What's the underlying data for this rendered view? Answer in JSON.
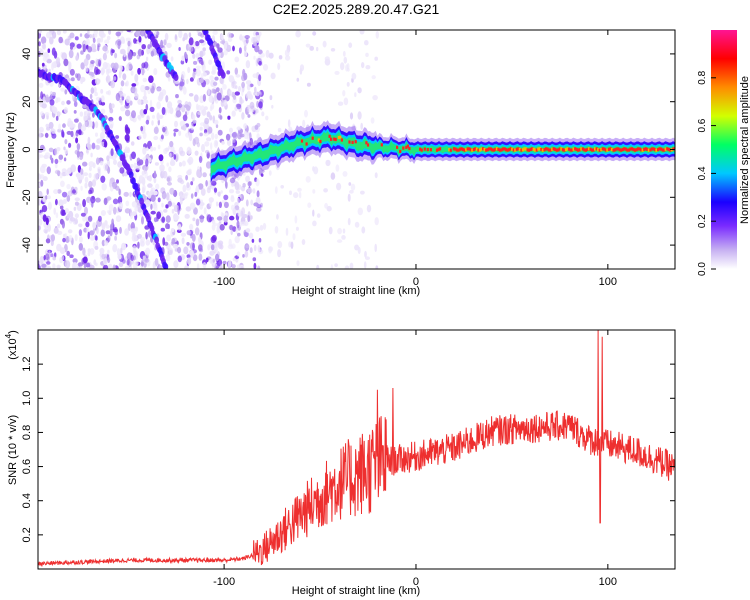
{
  "title": "C2E2.2025.289.20.47.G21",
  "chart_data": [
    {
      "type": "heatmap",
      "name": "spectrogram",
      "xlabel": "Height of straight line (km)",
      "ylabel": "Frequency (Hz)",
      "xlim": [
        -197,
        135
      ],
      "ylim": [
        -50,
        50
      ],
      "xticks": [
        -100,
        0,
        100
      ],
      "yticks": [
        40,
        20,
        0,
        -20,
        -40
      ],
      "colorbar": {
        "label": "Normalized spectral amplitude",
        "range": [
          0,
          1
        ],
        "ticks": [
          "0.0",
          "0.2",
          "0.4",
          "0.6",
          "0.8"
        ],
        "tick_values": [
          0,
          0.2,
          0.4,
          0.6,
          0.8
        ],
        "stops": [
          "#ffffff",
          "#c6b0f2",
          "#7a2bff",
          "#1a00ff",
          "#00c8ff",
          "#00ff64",
          "#d2ff00",
          "#ff8c00",
          "#ff0000",
          "#ff1493"
        ]
      },
      "features": [
        {
          "name": "carrier-track",
          "points": [
            [
              -107,
              -8
            ],
            [
              -95,
              -5
            ],
            [
              -80,
              -2
            ],
            [
              -60,
              3
            ],
            [
              -45,
              5
            ],
            [
              -30,
              2
            ],
            [
              -20,
              1
            ],
            [
              0,
              0
            ],
            [
              50,
              0
            ],
            [
              100,
              0
            ],
            [
              135,
              0
            ]
          ]
        },
        {
          "name": "chirp-track-left",
          "points": [
            [
              -197,
              32
            ],
            [
              -185,
              29
            ],
            [
              -165,
              15
            ],
            [
              -150,
              -8
            ],
            [
              -140,
              -28
            ],
            [
              -130,
              -50
            ]
          ]
        },
        {
          "name": "chirp-track-upper",
          "points": [
            [
              -140,
              50
            ],
            [
              -133,
              40
            ],
            [
              -125,
              30
            ]
          ]
        },
        {
          "name": "chirp-track-right",
          "points": [
            [
              -110,
              50
            ],
            [
              -105,
              40
            ],
            [
              -100,
              30
            ]
          ]
        }
      ]
    },
    {
      "type": "line",
      "name": "snr",
      "xlabel": "Height of straight line (km)",
      "ylabel": "SNR (10 * v/v)",
      "yscale_label": "(x10",
      "yscale_exp": "4",
      "xlim": [
        -197,
        135
      ],
      "ylim": [
        0,
        1.4
      ],
      "xticks": [
        -100,
        0,
        100
      ],
      "yticks": [
        0.2,
        0.4,
        0.6,
        0.8,
        1.0,
        1.2
      ],
      "ytick_labels": [
        "0.2",
        "0.4",
        "0.6",
        "0.8",
        "1.0",
        "1.2"
      ],
      "color": "#ee2f2f",
      "envelope": [
        [
          -197,
          0.03
        ],
        [
          -150,
          0.05
        ],
        [
          -100,
          0.05
        ],
        [
          -90,
          0.06
        ],
        [
          -80,
          0.1
        ],
        [
          -70,
          0.2
        ],
        [
          -60,
          0.3
        ],
        [
          -50,
          0.4
        ],
        [
          -40,
          0.48
        ],
        [
          -25,
          0.55
        ],
        [
          -15,
          0.62
        ],
        [
          0,
          0.65
        ],
        [
          20,
          0.7
        ],
        [
          40,
          0.8
        ],
        [
          60,
          0.82
        ],
        [
          80,
          0.83
        ],
        [
          90,
          0.75
        ],
        [
          100,
          0.72
        ],
        [
          115,
          0.68
        ],
        [
          135,
          0.58
        ]
      ],
      "spikes": [
        [
          -20,
          1.05
        ],
        [
          -12,
          1.06
        ],
        [
          95,
          1.4
        ],
        [
          97,
          1.36
        ],
        [
          96,
          0.27
        ]
      ]
    }
  ]
}
